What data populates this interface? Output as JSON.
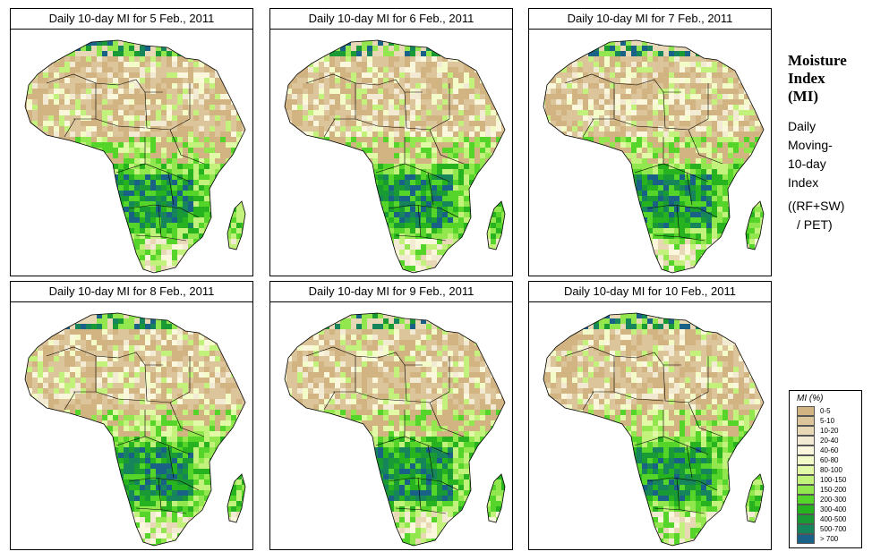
{
  "panels": [
    {
      "title": "Daily 10-day MI for  5 Feb., 2011"
    },
    {
      "title": "Daily 10-day MI for  6 Feb., 2011"
    },
    {
      "title": "Daily 10-day MI for  7 Feb., 2011"
    },
    {
      "title": "Daily 10-day MI for  8 Feb., 2011"
    },
    {
      "title": "Daily 10-day MI for  9 Feb., 2011"
    },
    {
      "title": "Daily 10-day MI for  10 Feb., 2011"
    }
  ],
  "side": {
    "title_line1": "Moisture",
    "title_line2": "Index",
    "title_line3": "(MI)",
    "desc_line1": "Daily",
    "desc_line2": "Moving-",
    "desc_line3": "10-day",
    "desc_line4": "Index",
    "formula_line1": "((RF+SW)",
    "formula_line2": "/ PET)"
  },
  "legend": {
    "title": "MI (%)",
    "items": [
      {
        "label": "0-5",
        "color": "#d2b483"
      },
      {
        "label": "5-10",
        "color": "#dcc59a"
      },
      {
        "label": "10-20",
        "color": "#e8d8b6"
      },
      {
        "label": "20-40",
        "color": "#f3ead3"
      },
      {
        "label": "40-60",
        "color": "#fbf7dd"
      },
      {
        "label": "60-80",
        "color": "#f3fbc8"
      },
      {
        "label": "80-100",
        "color": "#e2f9a8"
      },
      {
        "label": "100-150",
        "color": "#c3f27c"
      },
      {
        "label": "150-200",
        "color": "#92e64e"
      },
      {
        "label": "200-300",
        "color": "#55d42a"
      },
      {
        "label": "300-400",
        "color": "#27b31f"
      },
      {
        "label": "400-500",
        "color": "#1a9a35"
      },
      {
        "label": "500-700",
        "color": "#17855b"
      },
      {
        "label": "> 700",
        "color": "#1a6187"
      }
    ]
  }
}
